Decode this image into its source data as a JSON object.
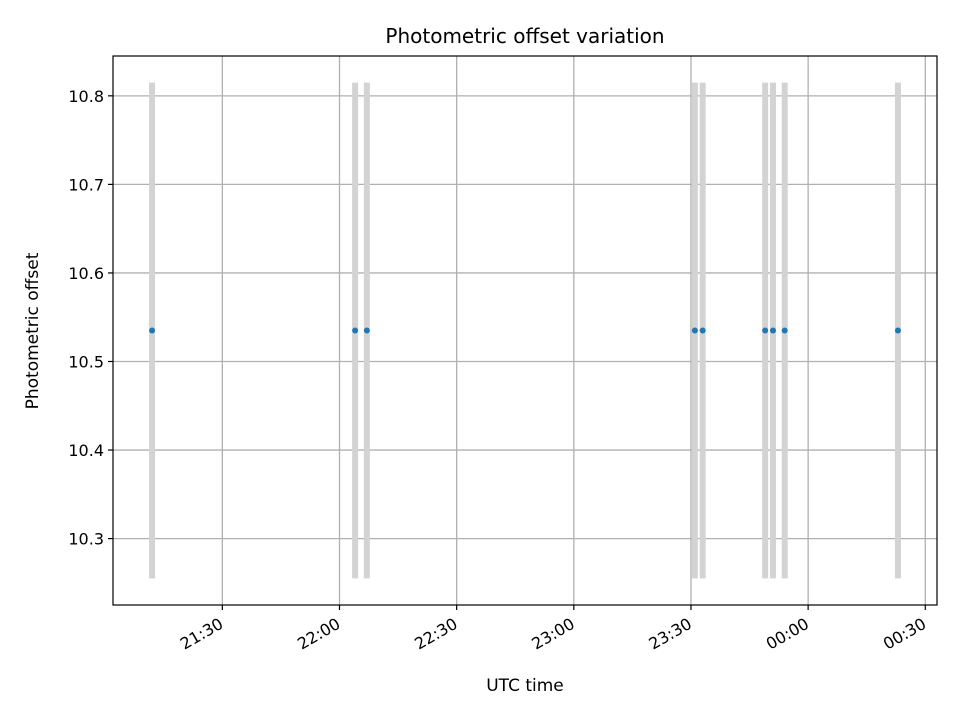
{
  "chart_data": {
    "type": "scatter",
    "title": "Photometric offset variation",
    "xlabel": "UTC time",
    "ylabel": "Photometric offset",
    "x_ticks": [
      "21:30",
      "22:00",
      "22:30",
      "23:00",
      "23:30",
      "00:00",
      "00:30"
    ],
    "y_ticks": [
      "10.3",
      "10.4",
      "10.5",
      "10.6",
      "10.7",
      "10.8"
    ],
    "xlim": [
      "21:02",
      "00:33"
    ],
    "ylim": [
      10.225,
      10.845
    ],
    "grid": true,
    "points": [
      {
        "x": "21:12",
        "y": 10.535,
        "err_low": 10.255,
        "err_high": 10.815
      },
      {
        "x": "22:04",
        "y": 10.535,
        "err_low": 10.255,
        "err_high": 10.815
      },
      {
        "x": "22:07",
        "y": 10.535,
        "err_low": 10.255,
        "err_high": 10.815
      },
      {
        "x": "23:31",
        "y": 10.535,
        "err_low": 10.255,
        "err_high": 10.815
      },
      {
        "x": "23:33",
        "y": 10.535,
        "err_low": 10.255,
        "err_high": 10.815
      },
      {
        "x": "23:49",
        "y": 10.535,
        "err_low": 10.255,
        "err_high": 10.815
      },
      {
        "x": "23:51",
        "y": 10.535,
        "err_low": 10.255,
        "err_high": 10.815
      },
      {
        "x": "23:54",
        "y": 10.535,
        "err_low": 10.255,
        "err_high": 10.815
      },
      {
        "x": "00:23",
        "y": 10.535,
        "err_low": 10.255,
        "err_high": 10.815
      }
    ],
    "colors": {
      "point": "#1f77b4",
      "errorbar": "#d3d3d3",
      "grid": "#b0b0b0"
    }
  }
}
